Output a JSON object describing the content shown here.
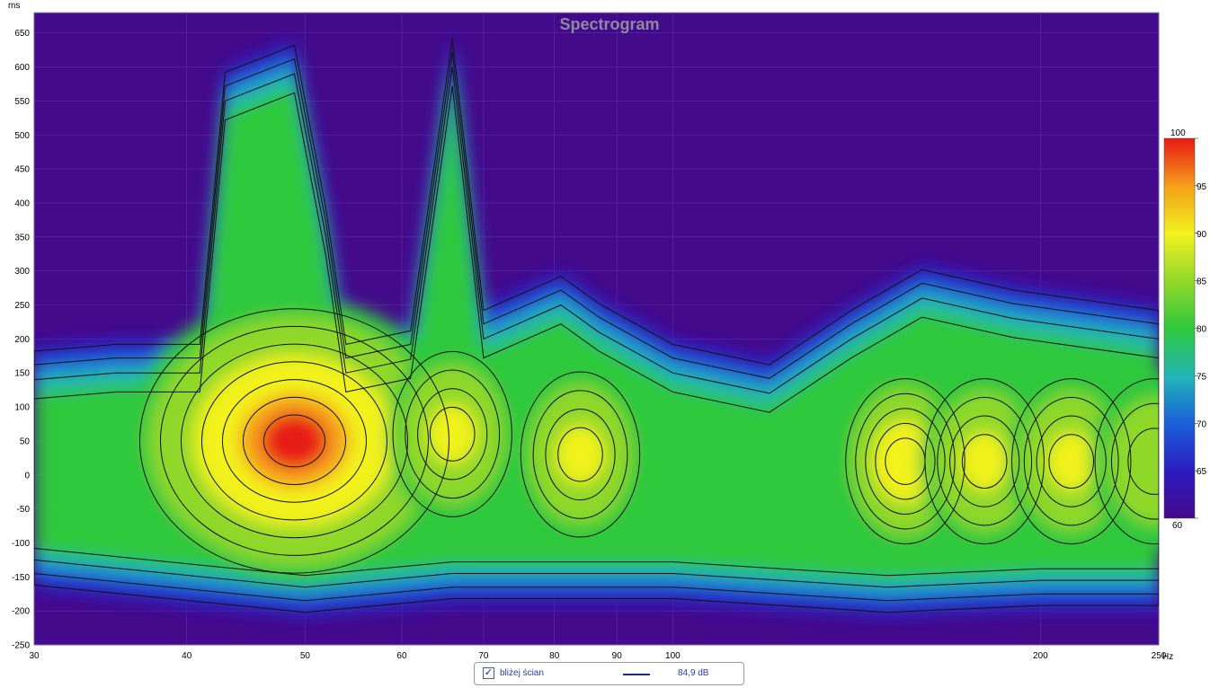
{
  "chart_data": {
    "type": "heatmap",
    "title": "Spectrogram",
    "y_unit": "ms",
    "x_unit": "Hz",
    "x_scale": "log",
    "xlim": [
      30,
      250
    ],
    "ylim": [
      -250,
      680
    ],
    "x_ticks": [
      30,
      40,
      50,
      60,
      70,
      80,
      90,
      100,
      200,
      250
    ],
    "y_ticks": [
      650,
      600,
      550,
      500,
      450,
      400,
      350,
      300,
      250,
      200,
      150,
      100,
      50,
      0,
      -50,
      -100,
      -150,
      -200,
      -250
    ],
    "colorbar": {
      "min": 60,
      "max": 100,
      "ticks": [
        100,
        95,
        90,
        85,
        80,
        75,
        70,
        65,
        60
      ],
      "colors": [
        "#450a8c",
        "#2b1bc0",
        "#1a5fd8",
        "#22b3b8",
        "#2ec83c",
        "#8fd82a",
        "#f2f21e",
        "#f5a21a",
        "#e81a14"
      ]
    },
    "background_color": "#440a8c",
    "grid": true,
    "contour_step_db": 3,
    "peaks": [
      {
        "freq": 49,
        "time": 50,
        "level": 99
      },
      {
        "freq": 66,
        "time": 60,
        "level": 88
      },
      {
        "freq": 84,
        "time": 30,
        "level": 88
      },
      {
        "freq": 155,
        "time": 20,
        "level": 92
      },
      {
        "freq": 180,
        "time": 20,
        "level": 88
      },
      {
        "freq": 212,
        "time": 20,
        "level": 88
      },
      {
        "freq": 248,
        "time": 20,
        "level": 87
      }
    ],
    "upper_boundary_ms": [
      {
        "freq": 30,
        "time": 190
      },
      {
        "freq": 35,
        "time": 200
      },
      {
        "freq": 41,
        "time": 200
      },
      {
        "freq": 43,
        "time": 600
      },
      {
        "freq": 49,
        "time": 640
      },
      {
        "freq": 52,
        "time": 400
      },
      {
        "freq": 54,
        "time": 200
      },
      {
        "freq": 61,
        "time": 220
      },
      {
        "freq": 66,
        "time": 650
      },
      {
        "freq": 70,
        "time": 250
      },
      {
        "freq": 81,
        "time": 300
      },
      {
        "freq": 87,
        "time": 260
      },
      {
        "freq": 100,
        "time": 200
      },
      {
        "freq": 120,
        "time": 170
      },
      {
        "freq": 140,
        "time": 250
      },
      {
        "freq": 160,
        "time": 310
      },
      {
        "freq": 190,
        "time": 280
      },
      {
        "freq": 250,
        "time": 250
      }
    ],
    "lower_boundary_ms": [
      {
        "freq": 30,
        "time": -170
      },
      {
        "freq": 50,
        "time": -210
      },
      {
        "freq": 66,
        "time": -190
      },
      {
        "freq": 100,
        "time": -190
      },
      {
        "freq": 150,
        "time": -210
      },
      {
        "freq": 200,
        "time": -200
      },
      {
        "freq": 250,
        "time": -200
      }
    ]
  },
  "legend": {
    "checked": true,
    "check_glyph": "✓",
    "series_name": "bliżej ścian",
    "series_color": "#1b2a8c",
    "value_label": "84,9 dB"
  }
}
